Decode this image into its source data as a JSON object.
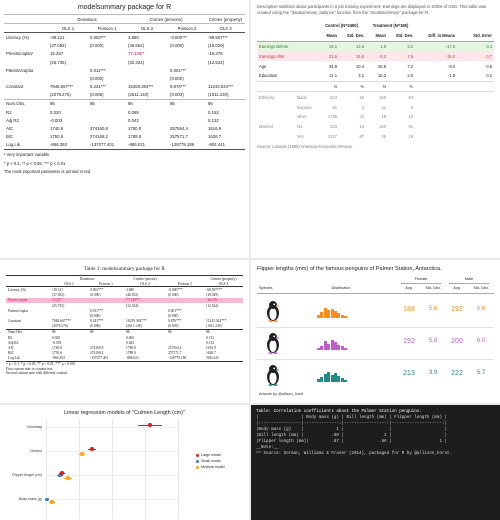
{
  "modelsummary": {
    "title": "modelsummary package for R",
    "group_headers": [
      "Donations",
      "Crimes (persons)",
      "Crimes (property)"
    ],
    "model_headers": [
      "",
      "OLS 1",
      "Poisson 1",
      "OLS 2",
      "Poisson 2",
      "OLS 3"
    ],
    "rows": [
      [
        "Literacy (%)",
        "-39.121",
        "0.003***",
        "3.680",
        "-0.000***",
        "-68.507***"
      ],
      [
        "",
        "(37.052)",
        "(0.000)",
        "(46.552)",
        "(0.000)",
        "(18.029)"
      ],
      [
        "Priests/capita¹",
        "15.257",
        "",
        "77.148**",
        "",
        "-16.376"
      ],
      [
        "",
        "(25.735)",
        "",
        "(32.334)",
        "",
        "(12.522)"
      ],
      [
        "Patents/capita",
        "",
        "0.011***",
        "",
        "0.001***",
        ""
      ],
      [
        "",
        "",
        "(0.000)",
        "",
        "(0.000)",
        ""
      ],
      [
        "Constant",
        "7948.667***",
        "8.241***",
        "16259.384***",
        "9.876***",
        "11243.544***"
      ],
      [
        "",
        "(2078.276)",
        "(0.006)",
        "(2611.140)",
        "(0.003)",
        "(1011.240)"
      ]
    ],
    "stats": [
      [
        "Num.Obs.",
        "86",
        "86",
        "86",
        "86",
        "86"
      ],
      [
        "R2",
        "0.020",
        "",
        "0.065",
        "",
        "0.152"
      ],
      [
        "Adj.R2",
        "-0.003",
        "",
        "0.043",
        "",
        "0.132"
      ],
      [
        "AIC",
        "1740.8",
        "274160.8",
        "1780.0",
        "257564.4",
        "1616.9"
      ],
      [
        "BIC",
        "1750.6",
        "274168.2",
        "1789.9",
        "257571.7",
        "1626.7"
      ],
      [
        "Log.Lik.",
        "-866.392",
        "-137077.401",
        "-886.021",
        "-128779.186",
        "-804.441"
      ]
    ],
    "notes": [
      "¹ Very important variable.",
      "* p < 0.1, ** p < 0.05, *** p < 0.01",
      "The most important parameter is printed in red."
    ]
  },
  "balance": {
    "description": "Descriptive statistics about participants in a job training experiment. Earnings are displayed in 1000s of USD. This table was created using the \"datasummary_balance\" function from the \"modelsummary\" package for R.",
    "group_headers": [
      "Control (N=2490)",
      "Treatment (N=185)"
    ],
    "col_headers": [
      "",
      "",
      "Mean",
      "Std. Dev.",
      "Mean",
      "Std. Dev.",
      "Diff. in Means",
      "Std. Error"
    ],
    "numeric_rows": [
      {
        "style": "hl-green",
        "cells": [
          "Earnings Before",
          "",
          "19.1",
          "13.6",
          "1.5",
          "3.2",
          "-17.5",
          "0.4"
        ]
      },
      {
        "style": "hl-red",
        "cells": [
          "Earnings After",
          "",
          "21.6",
          "15.6",
          "6.3",
          "7.9",
          "-15.2",
          "0.7"
        ]
      },
      {
        "style": "",
        "cells": [
          "Age",
          "",
          "34.9",
          "10.4",
          "25.8",
          "7.2",
          "-9.0",
          "0.6"
        ]
      },
      {
        "style": "",
        "cells": [
          "Education",
          "",
          "12.1",
          "3.1",
          "10.3",
          "2.0",
          "-1.8",
          "0.2"
        ]
      }
    ],
    "cat_header": [
      "",
      "",
      "N",
      "%",
      "N",
      "%",
      "",
      ""
    ],
    "cat_rows": [
      [
        "Ethnicity",
        "black",
        "624",
        "25",
        "156",
        "84",
        "",
        ""
      ],
      [
        "",
        "hispanic",
        "81",
        "3",
        "11",
        "6",
        "",
        ""
      ],
      [
        "",
        "other",
        "1785",
        "72",
        "18",
        "10",
        "",
        ""
      ],
      [
        "Married",
        "No",
        "333",
        "13",
        "150",
        "81",
        "",
        ""
      ],
      [
        "",
        "Yes",
        "2157",
        "87",
        "35",
        "19",
        "",
        ""
      ]
    ],
    "source": "Source: Lalonde (1986) American Economic Review."
  },
  "latex": {
    "caption": "Table 1: modelsummary package for R",
    "group_headers": [
      "Donations",
      "Crimes (person)",
      "Crimes (property)"
    ],
    "model_headers": [
      "",
      "OLS 1",
      "Poisson 1",
      "OLS 2",
      "Poisson 2",
      "OLS 3"
    ],
    "rows": [
      {
        "style": "",
        "cells": [
          "Literacy (%)",
          "-39.121",
          "0.003***",
          "3.680",
          "-0.000***",
          "-68.507***"
        ]
      },
      {
        "style": "",
        "cells": [
          "",
          "(37.052)",
          "(0.000)",
          "(46.552)",
          "(0.000)",
          "(18.029)"
        ]
      },
      {
        "style": "pink",
        "cells": [
          "Priests/capita",
          "15.257",
          "",
          "77.148**",
          "",
          "-16.376"
        ]
      },
      {
        "style": "",
        "cells": [
          "",
          "(25.735)",
          "",
          "(32.334)",
          "",
          "(12.522)"
        ]
      },
      {
        "style": "",
        "cells": [
          "Patents/capita",
          "",
          "0.011***",
          "",
          "0.001***",
          ""
        ]
      },
      {
        "style": "",
        "cells": [
          "",
          "",
          "(0.000)",
          "",
          "(0.000)",
          ""
        ]
      },
      {
        "style": "",
        "cells": [
          "Constant",
          "7948.667***",
          "8.241***",
          "16259.384***",
          "9.876***",
          "11243.544***"
        ]
      },
      {
        "style": "",
        "cells": [
          "",
          "(2078.276)",
          "(0.006)",
          "(2611.140)",
          "(0.003)",
          "(1011.240)"
        ]
      }
    ],
    "stats": [
      [
        "Num.Obs.",
        "86",
        "86",
        "86",
        "86",
        "86"
      ],
      [
        "R2",
        "0.020",
        "",
        "0.065",
        "",
        "0.152"
      ],
      [
        "Adj.R2",
        "-0.003",
        "",
        "0.043",
        "",
        "0.132"
      ],
      [
        "AIC",
        "1740.8",
        "274160.8",
        "1780.0",
        "257564.4",
        "1616.9"
      ],
      [
        "BIC",
        "1750.6",
        "274168.2",
        "1789.9",
        "257571.7",
        "1626.7"
      ],
      [
        "Log.Lik.",
        "-866.392",
        "-137077.401",
        "-886.021",
        "-128779.186",
        "-804.441"
      ]
    ],
    "notes": [
      "+ p < 0.1, * p < 0.05, ** p < 0.01, *** p < 0.001",
      "First custom note to contain text.",
      "Second custom note with different content."
    ]
  },
  "penguins": {
    "title": "Flipper lengths (mm) of the famous penguins of Palmer Station, Antarctica.",
    "group_headers": [
      "Female",
      "Male"
    ],
    "col_headers": [
      "Species",
      "Distribution",
      "Avg.",
      "Std. Dev.",
      "Avg.",
      "Std. Dev."
    ],
    "rows": [
      {
        "color": "#ff8c1a",
        "female_avg": "188",
        "female_sd": "5.6",
        "male_avg": "192",
        "male_sd": "6.6",
        "hist": [
          0.3,
          0.6,
          1.0,
          0.8,
          0.9,
          0.7,
          0.5,
          0.3,
          0.2
        ]
      },
      {
        "color": "#c05bd0",
        "female_avg": "192",
        "female_sd": "5.8",
        "male_avg": "200",
        "male_sd": "6.0",
        "hist": [
          0.2,
          0.4,
          0.9,
          0.6,
          1.0,
          0.8,
          0.5,
          0.4,
          0.2
        ]
      },
      {
        "color": "#1f8c8c",
        "female_avg": "213",
        "female_sd": "3.9",
        "male_avg": "222",
        "male_sd": "5.7",
        "hist": [
          0.3,
          0.5,
          0.8,
          1.0,
          0.7,
          0.9,
          0.6,
          0.4,
          0.2
        ]
      }
    ],
    "artwork": "Artwork by @allison_horst"
  },
  "coefplot": {
    "title": "Linear regression models of \"Culmen Length (cm)\"",
    "terms": [
      "Chinstrap",
      "Gentoo",
      "Flipper length (cm)",
      "Body mass (g)"
    ],
    "legend": [
      {
        "label": "Large model",
        "color": "#e41a1c"
      },
      {
        "label": "Small model",
        "color": "#377eb8"
      },
      {
        "label": "Medium model",
        "color": "#ff9f1a"
      }
    ]
  },
  "corr_table": {
    "lines": [
      "Table: Correlation coefficients about the Palmer Station penguins.",
      "",
      "|                 | Body mass (g) | Bill length (mm) | Flipper length (mm) |",
      "|:----------------|--------------:|-----------------:|--------------------:|",
      "|Body mass (g)    |             1 |                  |                     |",
      "|Bill length (mm) |           .60 |                1 |                     |",
      "|Flipper length (mm)|         .87 |              .66 |                   1 |",
      "",
      "__Note:__",
      "^^ Source: Gorman, Williams & Fraser (2014), packaged for R by @allison_horst."
    ]
  }
}
